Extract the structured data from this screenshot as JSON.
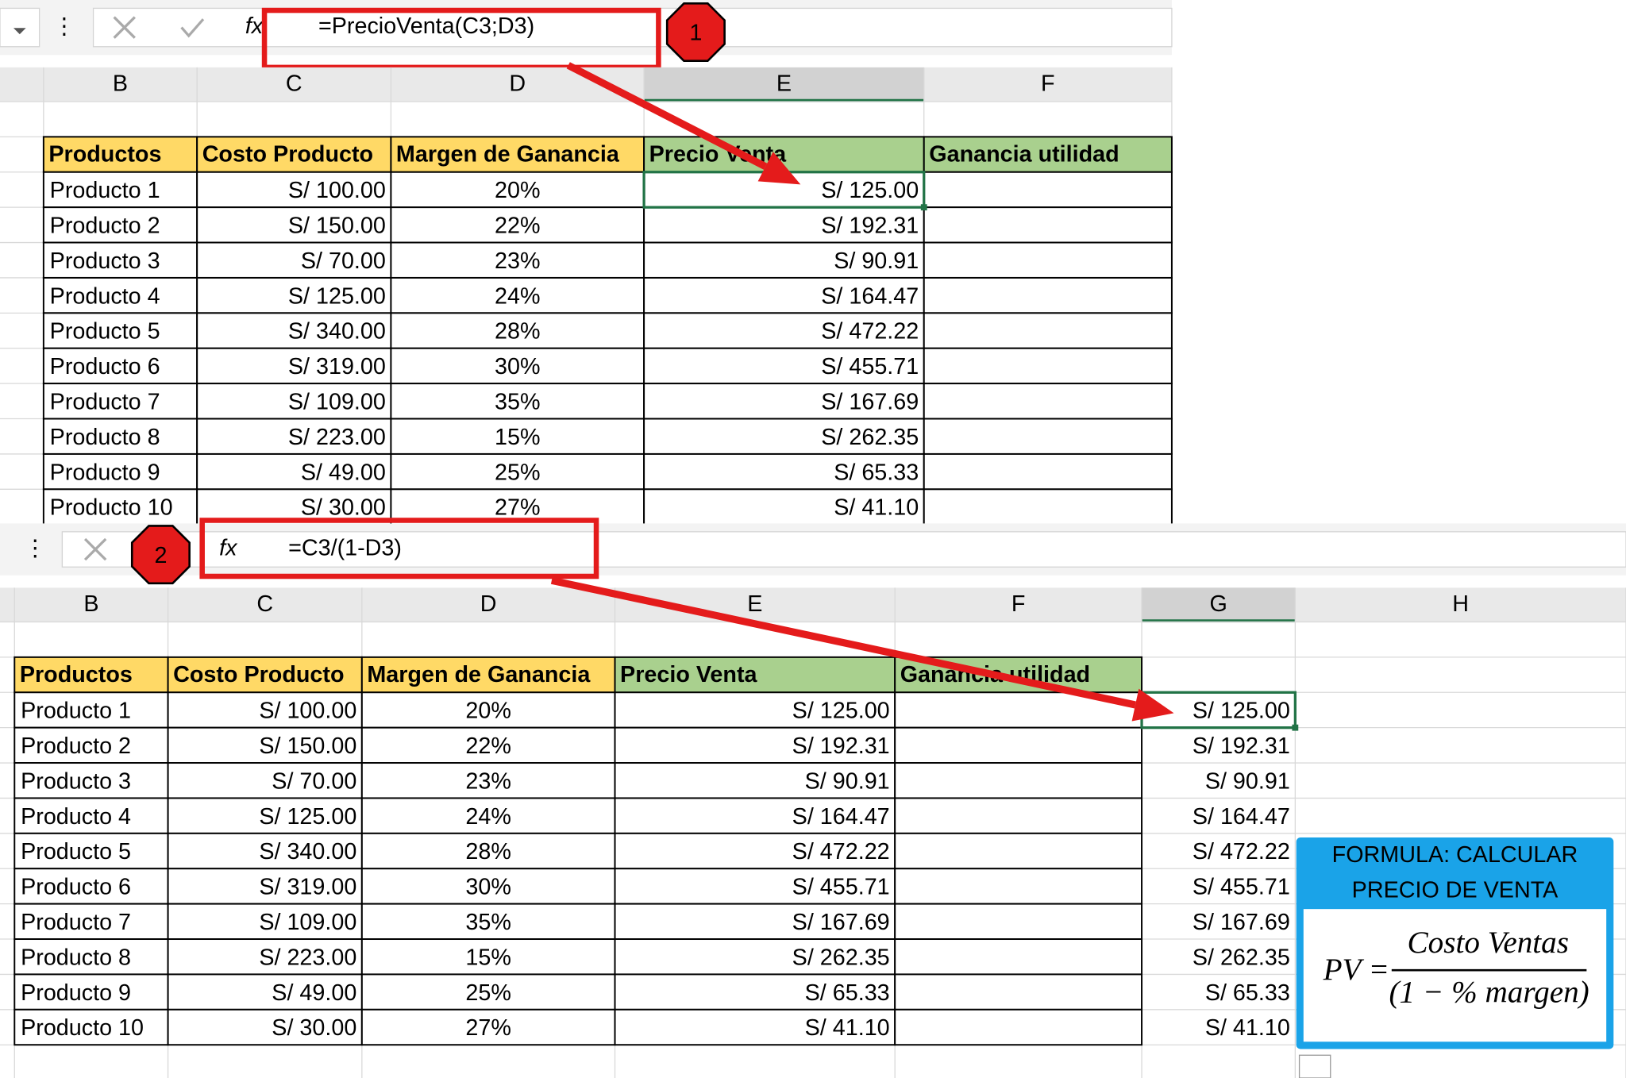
{
  "panels": [
    {
      "formula_bar": {
        "formula": "=PrecioVenta(C3;D3)",
        "badge": "1"
      },
      "columns": [
        "B",
        "C",
        "D",
        "E",
        "F"
      ],
      "headers": [
        "Productos",
        "Costo  Producto",
        "Margen de Ganancia",
        "Precio Venta",
        "Ganancia utilidad"
      ],
      "rows": [
        [
          "Producto 1",
          "S/ 100.00",
          "20%",
          "S/ 125.00"
        ],
        [
          "Producto 2",
          "S/ 150.00",
          "22%",
          "S/ 192.31"
        ],
        [
          "Producto 3",
          "S/ 70.00",
          "23%",
          "S/ 90.91"
        ],
        [
          "Producto 4",
          "S/ 125.00",
          "24%",
          "S/ 164.47"
        ],
        [
          "Producto 5",
          "S/ 340.00",
          "28%",
          "S/ 472.22"
        ],
        [
          "Producto 6",
          "S/ 319.00",
          "30%",
          "S/ 455.71"
        ],
        [
          "Producto 7",
          "S/ 109.00",
          "35%",
          "S/ 167.69"
        ],
        [
          "Producto 8",
          "S/ 223.00",
          "15%",
          "S/ 262.35"
        ],
        [
          "Producto 9",
          "S/ 49.00",
          "25%",
          "S/ 65.33"
        ],
        [
          "Producto 10",
          "S/ 30.00",
          "27%",
          "S/ 41.10"
        ]
      ]
    },
    {
      "formula_bar": {
        "formula": "=C3/(1-D3)",
        "badge": "2"
      },
      "columns": [
        "B",
        "C",
        "D",
        "E",
        "F",
        "G",
        "H"
      ],
      "headers": [
        "Productos",
        "Costo  Producto",
        "Margen de Ganancia",
        "Precio Venta",
        "Ganancia utilidad"
      ],
      "rows": [
        [
          "Producto 1",
          "S/ 100.00",
          "20%",
          "S/ 125.00"
        ],
        [
          "Producto 2",
          "S/ 150.00",
          "22%",
          "S/ 192.31"
        ],
        [
          "Producto 3",
          "S/ 70.00",
          "23%",
          "S/ 90.91"
        ],
        [
          "Producto 4",
          "S/ 125.00",
          "24%",
          "S/ 164.47"
        ],
        [
          "Producto 5",
          "S/ 340.00",
          "28%",
          "S/ 472.22"
        ],
        [
          "Producto 6",
          "S/ 319.00",
          "30%",
          "S/ 455.71"
        ],
        [
          "Producto 7",
          "S/ 109.00",
          "35%",
          "S/ 167.69"
        ],
        [
          "Producto 8",
          "S/ 223.00",
          "15%",
          "S/ 262.35"
        ],
        [
          "Producto 9",
          "S/ 49.00",
          "25%",
          "S/ 65.33"
        ],
        [
          "Producto 10",
          "S/ 30.00",
          "27%",
          "S/ 41.10"
        ]
      ],
      "result_column": [
        "S/ 125.00",
        "S/ 192.31",
        "S/ 90.91",
        "S/ 164.47",
        "S/ 472.22",
        "S/ 455.71",
        "S/ 167.69",
        "S/ 262.35",
        "S/ 65.33",
        "S/ 41.10"
      ]
    }
  ],
  "formula_box": {
    "title_line1": "FORMULA: CALCULAR",
    "title_line2": "PRECIO DE VENTA",
    "lhs": "PV =",
    "numerator": "Costo Ventas",
    "denominator": "(1 − % margen)"
  }
}
